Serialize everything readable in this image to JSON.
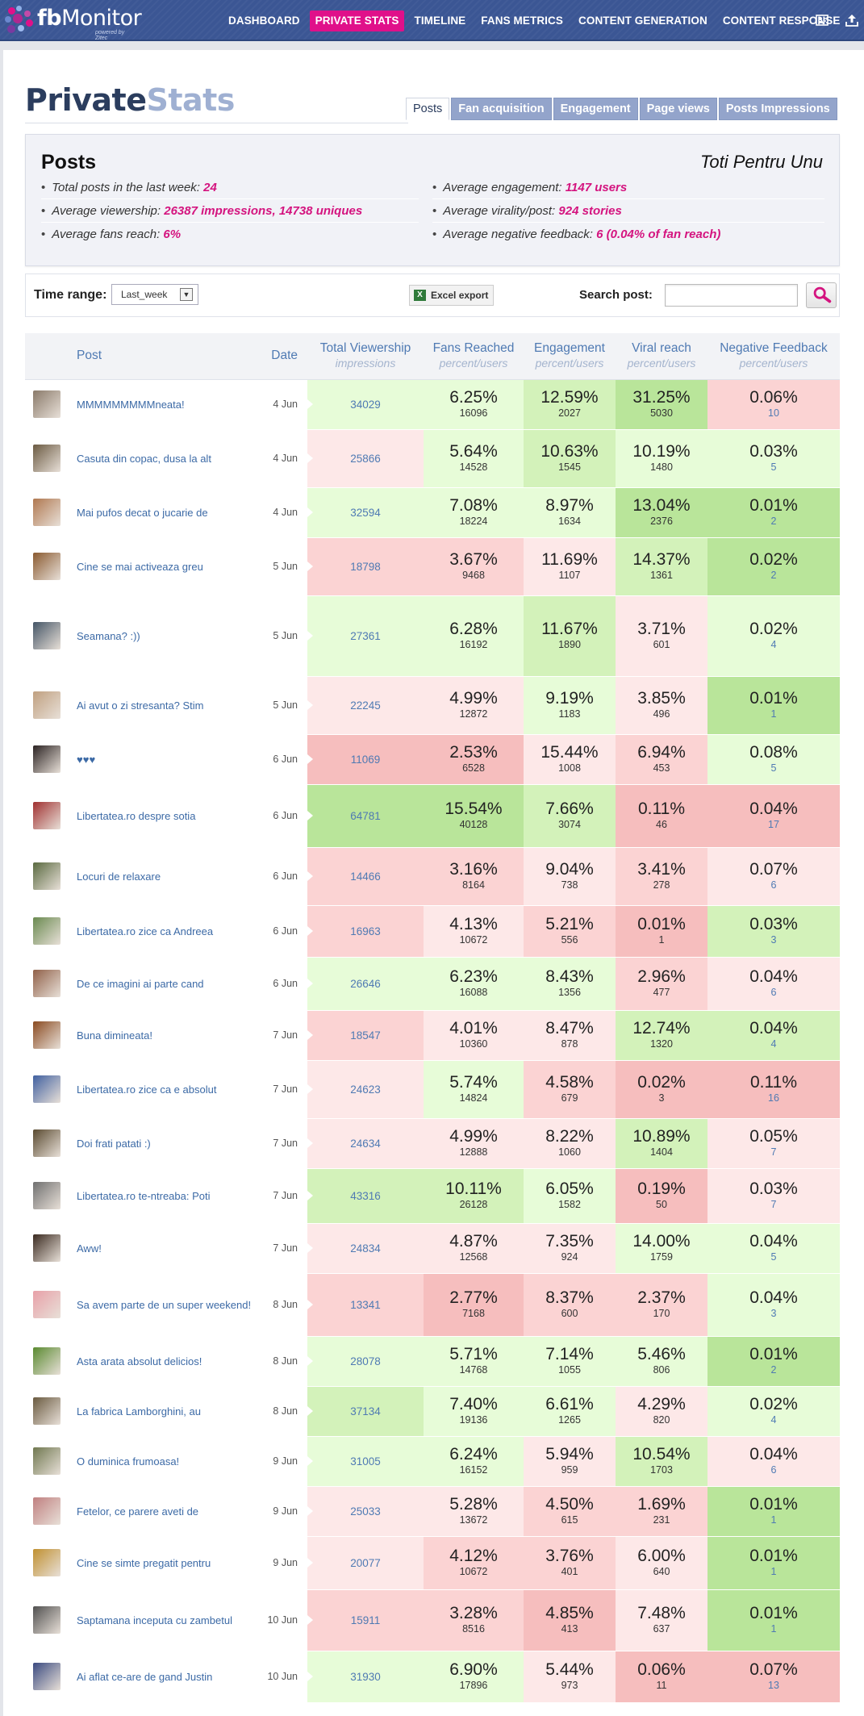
{
  "app": {
    "logo_main": "fb",
    "logo_rest": "Monitor",
    "logo_sub": "powered by Zitec"
  },
  "nav": [
    {
      "key": "dashboard",
      "label": "DASHBOARD",
      "active": false
    },
    {
      "key": "private-stats",
      "label": "PRIVATE STATS",
      "active": true
    },
    {
      "key": "timeline",
      "label": "TIMELINE",
      "active": false
    },
    {
      "key": "fans-metrics",
      "label": "FANS METRICS",
      "active": false
    },
    {
      "key": "content-generation",
      "label": "CONTENT GENERATION",
      "active": false
    },
    {
      "key": "content-response",
      "label": "CONTENT RESPONSE",
      "active": false
    }
  ],
  "title": {
    "part1": "Private",
    "part2": "Stats"
  },
  "tabs": [
    {
      "key": "posts",
      "label": "Posts",
      "active": true
    },
    {
      "key": "fan-acquisition",
      "label": "Fan acquisition",
      "active": false
    },
    {
      "key": "engagement",
      "label": "Engagement",
      "active": false
    },
    {
      "key": "page-views",
      "label": "Page views",
      "active": false
    },
    {
      "key": "posts-impressions",
      "label": "Posts Impressions",
      "active": false
    }
  ],
  "summary": {
    "heading": "Posts",
    "page_name": "Toti Pentru Unu",
    "left": [
      {
        "label": "Total posts in the last week:",
        "value": "24"
      },
      {
        "label": "Average viewership:",
        "value": "26387 impressions, 14738 uniques"
      },
      {
        "label": "Average fans reach:",
        "value": "6%"
      }
    ],
    "right": [
      {
        "label": "Average engagement:",
        "value": "1147 users"
      },
      {
        "label": "Average virality/post:",
        "value": "924 stories"
      },
      {
        "label": "Average negative feedback:",
        "value": "6 (0.04% of fan reach)"
      }
    ]
  },
  "filters": {
    "time_range_label": "Time range:",
    "time_range_value": "Last_week",
    "excel_label": "Excel export",
    "search_label": "Search post:",
    "search_value": ""
  },
  "table": {
    "headers": {
      "post": "Post",
      "date": "Date",
      "viewership": "Total Viewership",
      "viewership_sub": "impressions",
      "fans": "Fans Reached",
      "fans_sub": "percent/users",
      "engagement": "Engagement",
      "engagement_sub": "percent/users",
      "viral": "Viral reach",
      "viral_sub": "percent/users",
      "negative": "Negative Feedback",
      "negative_sub": "percent/users"
    },
    "colors": {
      "good_strong": "#b9e59a",
      "good": "#d3f2ba",
      "good_light": "#e7fcd8",
      "bad_light": "#fde8e8",
      "bad": "#fbd3d3",
      "bad_strong": "#f6bebe"
    },
    "rows": [
      {
        "post": "MMMMMMMMMneata!",
        "date": "4 Jun",
        "viewership": "34029",
        "fans_pct": "6.25%",
        "fans_users": "16096",
        "eng_pct": "12.59%",
        "eng_users": "2027",
        "viral_pct": "31.25%",
        "viral_users": "5030",
        "neg_pct": "0.06%",
        "neg_users": "10",
        "c": [
          "good_light",
          "good_light",
          "good",
          "good_strong",
          "bad"
        ],
        "h": 62,
        "thumb": "#8a7a6a"
      },
      {
        "post": "Casuta din copac, dusa la alt",
        "date": "4 Jun",
        "viewership": "25866",
        "fans_pct": "5.64%",
        "fans_users": "14528",
        "eng_pct": "10.63%",
        "eng_users": "1545",
        "viral_pct": "10.19%",
        "viral_users": "1480",
        "neg_pct": "0.03%",
        "neg_users": "5",
        "c": [
          "bad_light",
          "good_light",
          "good",
          "good_light",
          "good_light"
        ],
        "h": 72,
        "thumb": "#6b5a42"
      },
      {
        "post": "Mai pufos decat o jucarie de",
        "date": "4 Jun",
        "viewership": "32594",
        "fans_pct": "7.08%",
        "fans_users": "18224",
        "eng_pct": "8.97%",
        "eng_users": "1634",
        "viral_pct": "13.04%",
        "viral_users": "2376",
        "neg_pct": "0.01%",
        "neg_users": "2",
        "c": [
          "good_light",
          "good_light",
          "good_light",
          "good_strong",
          "good_strong"
        ],
        "h": 62,
        "thumb": "#b07850"
      },
      {
        "post": "Cine se mai activeaza greu",
        "date": "5 Jun",
        "viewership": "18798",
        "fans_pct": "3.67%",
        "fans_users": "9468",
        "eng_pct": "11.69%",
        "eng_users": "1107",
        "viral_pct": "14.37%",
        "viral_users": "1361",
        "neg_pct": "0.02%",
        "neg_users": "2",
        "c": [
          "bad",
          "bad",
          "bad_light",
          "good",
          "good_strong"
        ],
        "h": 72,
        "thumb": "#8a5a30"
      },
      {
        "post": "Seamana? :))",
        "date": "5 Jun",
        "viewership": "27361",
        "fans_pct": "6.28%",
        "fans_users": "16192",
        "eng_pct": "11.67%",
        "eng_users": "1890",
        "viral_pct": "3.71%",
        "viral_users": "601",
        "neg_pct": "0.02%",
        "neg_users": "4",
        "c": [
          "good_light",
          "good_light",
          "good",
          "bad_light",
          "good_light"
        ],
        "h": 100,
        "thumb": "#445566"
      },
      {
        "post": "Ai avut o zi stresanta? Stim",
        "date": "5 Jun",
        "viewership": "22245",
        "fans_pct": "4.99%",
        "fans_users": "12872",
        "eng_pct": "9.19%",
        "eng_users": "1183",
        "viral_pct": "3.85%",
        "viral_users": "496",
        "neg_pct": "0.01%",
        "neg_users": "1",
        "c": [
          "bad_light",
          "bad_light",
          "good_light",
          "bad_light",
          "good_strong"
        ],
        "h": 72,
        "thumb": "#c0a080"
      },
      {
        "post": "♥♥♥",
        "date": "6 Jun",
        "viewership": "11069",
        "fans_pct": "2.53%",
        "fans_users": "6528",
        "eng_pct": "15.44%",
        "eng_users": "1008",
        "viral_pct": "6.94%",
        "viral_users": "453",
        "neg_pct": "0.08%",
        "neg_users": "5",
        "c": [
          "bad_strong",
          "bad_strong",
          "bad_light",
          "bad",
          "good_light"
        ],
        "h": 62,
        "thumb": "#2a2222"
      },
      {
        "post": "Libertatea.ro despre sotia",
        "date": "6 Jun",
        "viewership": "64781",
        "fans_pct": "15.54%",
        "fans_users": "40128",
        "eng_pct": "7.66%",
        "eng_users": "3074",
        "viral_pct": "0.11%",
        "viral_users": "46",
        "neg_pct": "0.04%",
        "neg_users": "17",
        "c": [
          "good_strong",
          "good_strong",
          "good",
          "bad_strong",
          "bad_strong"
        ],
        "h": 78,
        "thumb": "#a03030"
      },
      {
        "post": "Locuri de relaxare",
        "date": "6 Jun",
        "viewership": "14466",
        "fans_pct": "3.16%",
        "fans_users": "8164",
        "eng_pct": "9.04%",
        "eng_users": "738",
        "viral_pct": "3.41%",
        "viral_users": "278",
        "neg_pct": "0.07%",
        "neg_users": "6",
        "c": [
          "bad",
          "bad",
          "bad_light",
          "bad",
          "bad_light"
        ],
        "h": 72,
        "thumb": "#5a6a40"
      },
      {
        "post": "Libertatea.ro zice ca Andreea",
        "date": "6 Jun",
        "viewership": "16963",
        "fans_pct": "4.13%",
        "fans_users": "10672",
        "eng_pct": "5.21%",
        "eng_users": "556",
        "viral_pct": "0.01%",
        "viral_users": "1",
        "neg_pct": "0.03%",
        "neg_users": "3",
        "c": [
          "bad",
          "bad_light",
          "bad",
          "bad_strong",
          "good"
        ],
        "h": 64,
        "thumb": "#6a8a50"
      },
      {
        "post": "De ce imagini ai parte cand",
        "date": "6 Jun",
        "viewership": "26646",
        "fans_pct": "6.23%",
        "fans_users": "16088",
        "eng_pct": "8.43%",
        "eng_users": "1356",
        "viral_pct": "2.96%",
        "viral_users": "477",
        "neg_pct": "0.04%",
        "neg_users": "6",
        "c": [
          "good_light",
          "good_light",
          "good_light",
          "bad",
          "bad_light"
        ],
        "h": 66,
        "thumb": "#906048"
      },
      {
        "post": "Buna dimineata!",
        "date": "7 Jun",
        "viewership": "18547",
        "fans_pct": "4.01%",
        "fans_users": "10360",
        "eng_pct": "8.47%",
        "eng_users": "878",
        "viral_pct": "12.74%",
        "viral_users": "1320",
        "neg_pct": "0.04%",
        "neg_users": "4",
        "c": [
          "bad",
          "bad_light",
          "bad_light",
          "good",
          "good"
        ],
        "h": 62,
        "thumb": "#8a4a20"
      },
      {
        "post": "Libertatea.ro zice ca e absolut",
        "date": "7 Jun",
        "viewership": "24623",
        "fans_pct": "5.74%",
        "fans_users": "14824",
        "eng_pct": "4.58%",
        "eng_users": "679",
        "viral_pct": "0.02%",
        "viral_users": "3",
        "neg_pct": "0.11%",
        "neg_users": "16",
        "c": [
          "bad_light",
          "good_light",
          "bad",
          "bad_strong",
          "bad_strong"
        ],
        "h": 72,
        "thumb": "#4060a0"
      },
      {
        "post": "Doi frati patati :)",
        "date": "7 Jun",
        "viewership": "24634",
        "fans_pct": "4.99%",
        "fans_users": "12888",
        "eng_pct": "8.22%",
        "eng_users": "1060",
        "viral_pct": "10.89%",
        "viral_users": "1404",
        "neg_pct": "0.05%",
        "neg_users": "7",
        "c": [
          "bad_light",
          "bad_light",
          "bad_light",
          "good",
          "bad_light"
        ],
        "h": 62,
        "thumb": "#5a4a30"
      },
      {
        "post": "Libertatea.ro te-ntreaba: Poti",
        "date": "7 Jun",
        "viewership": "43316",
        "fans_pct": "10.11%",
        "fans_users": "26128",
        "eng_pct": "6.05%",
        "eng_users": "1582",
        "viral_pct": "0.19%",
        "viral_users": "50",
        "neg_pct": "0.03%",
        "neg_users": "7",
        "c": [
          "good",
          "good",
          "good_light",
          "bad_strong",
          "bad_light"
        ],
        "h": 68,
        "thumb": "#707070"
      },
      {
        "post": "Aww!",
        "date": "7 Jun",
        "viewership": "24834",
        "fans_pct": "4.87%",
        "fans_users": "12568",
        "eng_pct": "7.35%",
        "eng_users": "924",
        "viral_pct": "14.00%",
        "viral_users": "1759",
        "neg_pct": "0.04%",
        "neg_users": "5",
        "c": [
          "bad_light",
          "bad_light",
          "bad_light",
          "good_light",
          "good_light"
        ],
        "h": 62,
        "thumb": "#3a2a20"
      },
      {
        "post": "Sa avem parte de un super weekend!",
        "date": "8 Jun",
        "viewership": "13341",
        "fans_pct": "2.77%",
        "fans_users": "7168",
        "eng_pct": "8.37%",
        "eng_users": "600",
        "viral_pct": "2.37%",
        "viral_users": "170",
        "neg_pct": "0.04%",
        "neg_users": "3",
        "c": [
          "bad",
          "bad_strong",
          "bad",
          "bad",
          "good_light"
        ],
        "h": 78,
        "thumb": "#e8a0a8"
      },
      {
        "post": "Asta arata absolut delicios!",
        "date": "8 Jun",
        "viewership": "28078",
        "fans_pct": "5.71%",
        "fans_users": "14768",
        "eng_pct": "7.14%",
        "eng_users": "1055",
        "viral_pct": "5.46%",
        "viral_users": "806",
        "neg_pct": "0.01%",
        "neg_users": "2",
        "c": [
          "good_light",
          "good_light",
          "good_light",
          "good_light",
          "good_strong"
        ],
        "h": 62,
        "thumb": "#5a8a30"
      },
      {
        "post": "La fabrica Lamborghini, au",
        "date": "8 Jun",
        "viewership": "37134",
        "fans_pct": "7.40%",
        "fans_users": "19136",
        "eng_pct": "6.61%",
        "eng_users": "1265",
        "viral_pct": "4.29%",
        "viral_users": "820",
        "neg_pct": "0.02%",
        "neg_users": "4",
        "c": [
          "good",
          "good_light",
          "good_light",
          "bad_light",
          "good_light"
        ],
        "h": 62,
        "thumb": "#6a5a40"
      },
      {
        "post": "O duminica frumoasa!",
        "date": "9 Jun",
        "viewership": "31005",
        "fans_pct": "6.24%",
        "fans_users": "16152",
        "eng_pct": "5.94%",
        "eng_users": "959",
        "viral_pct": "10.54%",
        "viral_users": "1703",
        "neg_pct": "0.04%",
        "neg_users": "6",
        "c": [
          "good_light",
          "good_light",
          "bad_light",
          "good",
          "bad_light"
        ],
        "h": 62,
        "thumb": "#707850"
      },
      {
        "post": "Fetelor, ce parere aveti de",
        "date": "9 Jun",
        "viewership": "25033",
        "fans_pct": "5.28%",
        "fans_users": "13672",
        "eng_pct": "4.50%",
        "eng_users": "615",
        "viral_pct": "1.69%",
        "viral_users": "231",
        "neg_pct": "0.01%",
        "neg_users": "1",
        "c": [
          "bad_light",
          "bad_light",
          "bad",
          "bad",
          "good_strong"
        ],
        "h": 62,
        "thumb": "#c08080"
      },
      {
        "post": "Cine se simte pregatit pentru",
        "date": "9 Jun",
        "viewership": "20077",
        "fans_pct": "4.12%",
        "fans_users": "10672",
        "eng_pct": "3.76%",
        "eng_users": "401",
        "viral_pct": "6.00%",
        "viral_users": "640",
        "neg_pct": "0.01%",
        "neg_users": "1",
        "c": [
          "bad_light",
          "bad",
          "bad",
          "bad_light",
          "good_strong"
        ],
        "h": 66,
        "thumb": "#c09030"
      },
      {
        "post": "Saptamana inceputa cu zambetul",
        "date": "10 Jun",
        "viewership": "15911",
        "fans_pct": "3.28%",
        "fans_users": "8516",
        "eng_pct": "4.85%",
        "eng_users": "413",
        "viral_pct": "7.48%",
        "viral_users": "637",
        "neg_pct": "0.01%",
        "neg_users": "1",
        "c": [
          "bad",
          "bad",
          "bad_strong",
          "bad_light",
          "good_strong"
        ],
        "h": 76,
        "thumb": "#505050"
      },
      {
        "post": "Ai aflat ce-are de gand Justin",
        "date": "10 Jun",
        "viewership": "31930",
        "fans_pct": "6.90%",
        "fans_users": "17896",
        "eng_pct": "5.44%",
        "eng_users": "973",
        "viral_pct": "0.06%",
        "viral_users": "11",
        "neg_pct": "0.07%",
        "neg_users": "13",
        "c": [
          "good_light",
          "good_light",
          "bad_light",
          "bad_strong",
          "bad_strong"
        ],
        "h": 64,
        "thumb": "#3a4a80"
      }
    ]
  }
}
